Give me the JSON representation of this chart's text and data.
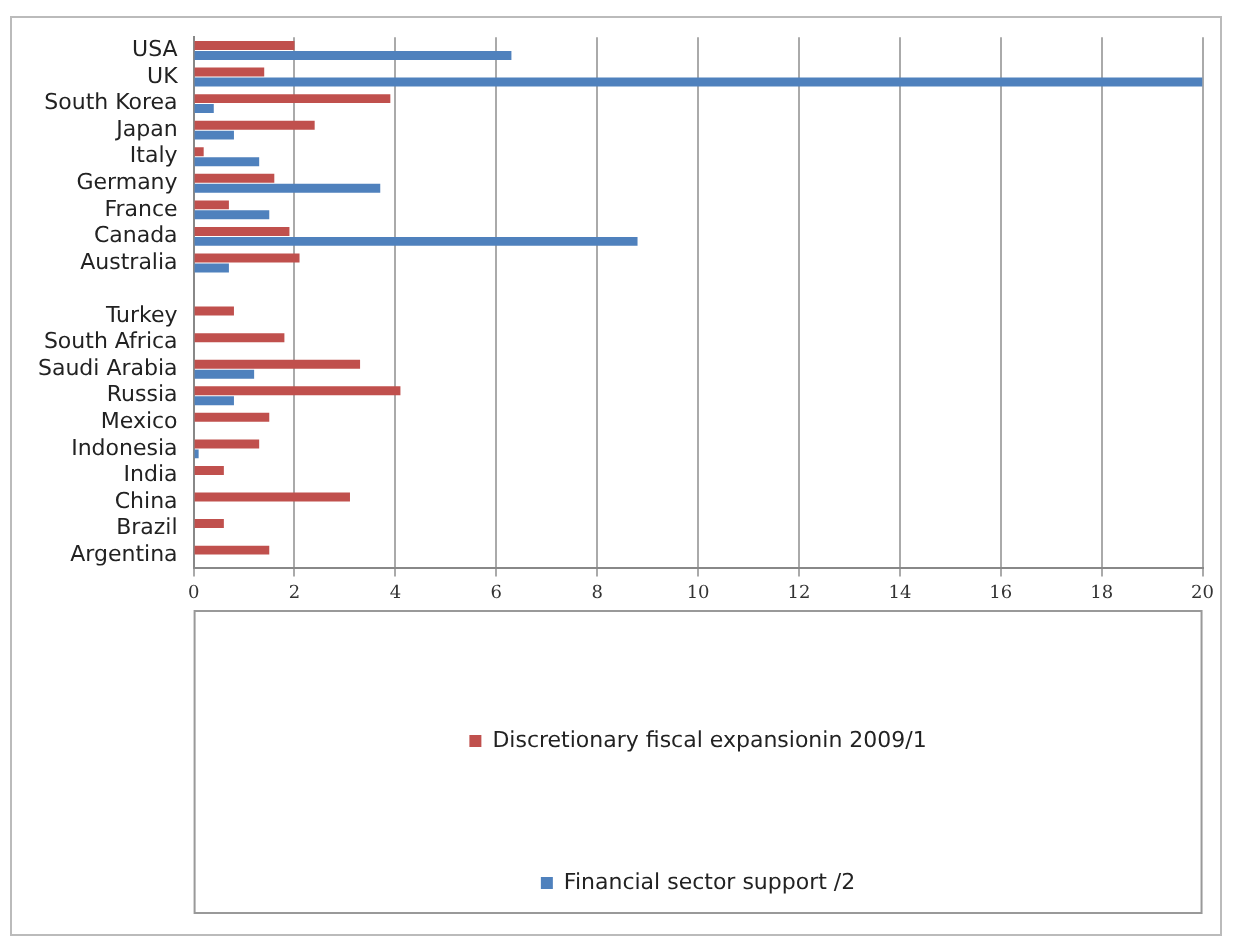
{
  "chart_data": {
    "type": "bar",
    "orientation": "horizontal",
    "categories": [
      "USA",
      "UK",
      "South Korea",
      "Japan",
      "Italy",
      "Germany",
      "France",
      "Canada",
      "Australia",
      null,
      "Turkey",
      "South Africa",
      "Saudi Arabia",
      "Russia",
      "Mexico",
      "Indonesia",
      "India",
      "China",
      "Brazil",
      "Argentina"
    ],
    "series": [
      {
        "name": "Discretionary fiscal expansionin 2009/1",
        "color": "#c0504d",
        "values": [
          2.0,
          1.4,
          3.9,
          2.4,
          0.2,
          1.6,
          0.7,
          1.9,
          2.1,
          null,
          0.8,
          1.8,
          3.3,
          4.1,
          1.5,
          1.3,
          0.6,
          3.1,
          0.6,
          1.5
        ]
      },
      {
        "name": "Financial sector support /2",
        "color": "#4f81bd",
        "values": [
          6.3,
          20,
          0.4,
          0.8,
          1.3,
          3.7,
          1.5,
          8.8,
          0.7,
          null,
          null,
          null,
          1.2,
          0.8,
          null,
          0.1,
          null,
          null,
          null,
          null
        ]
      }
    ],
    "xlim": [
      0,
      20
    ],
    "xticks": [
      0,
      2,
      4,
      6,
      8,
      10,
      12,
      14,
      16,
      18,
      20
    ],
    "grid": "x",
    "legend": "bottom"
  }
}
